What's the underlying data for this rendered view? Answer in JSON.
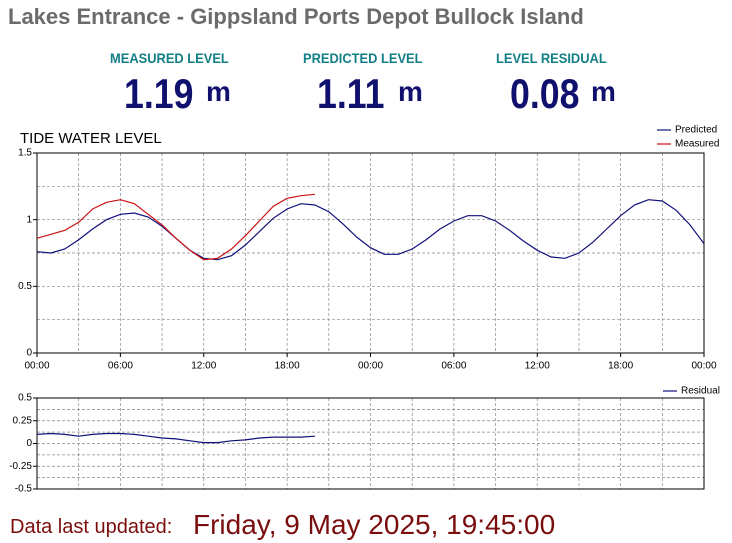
{
  "header": {
    "title": "Lakes Entrance - Gippsland Ports Depot Bullock Island"
  },
  "metrics": [
    {
      "label": "MEASURED LEVEL",
      "value": 1.19,
      "unit": "m"
    },
    {
      "label": "PREDICTED LEVEL",
      "value": 1.11,
      "unit": "m"
    },
    {
      "label": "LEVEL RESIDUAL",
      "value": 0.08,
      "unit": "m"
    }
  ],
  "chart_data": [
    {
      "type": "line",
      "title": "TIDE WATER LEVEL",
      "x": [
        0,
        1,
        2,
        3,
        4,
        5,
        6,
        7,
        8,
        9,
        10,
        11,
        12,
        13,
        14,
        15,
        16,
        17,
        18,
        19,
        20,
        21,
        22,
        23,
        24,
        25,
        26,
        27,
        28,
        29,
        30,
        31,
        32,
        33,
        34,
        35,
        36,
        37,
        38,
        39,
        40,
        41,
        42,
        43,
        44,
        45,
        46,
        47,
        48
      ],
      "series": [
        {
          "name": "Predicted",
          "color": "#10107a",
          "values": [
            0.76,
            0.75,
            0.78,
            0.85,
            0.93,
            1.0,
            1.04,
            1.05,
            1.02,
            0.95,
            0.86,
            0.77,
            0.71,
            0.7,
            0.73,
            0.81,
            0.91,
            1.01,
            1.08,
            1.12,
            1.11,
            1.06,
            0.97,
            0.87,
            0.79,
            0.74,
            0.74,
            0.78,
            0.85,
            0.93,
            0.99,
            1.03,
            1.03,
            0.99,
            0.92,
            0.84,
            0.77,
            0.72,
            0.71,
            0.75,
            0.83,
            0.93,
            1.03,
            1.11,
            1.15,
            1.14,
            1.07,
            0.96,
            0.82
          ]
        },
        {
          "name": "Measured",
          "color": "#cc1111",
          "values": [
            0.86,
            0.89,
            0.92,
            0.98,
            1.08,
            1.13,
            1.15,
            1.12,
            1.04,
            0.96,
            0.86,
            0.77,
            0.7,
            0.71,
            0.78,
            0.88,
            0.99,
            1.1,
            1.16,
            1.18,
            1.19,
            null,
            null,
            null,
            null,
            null,
            null,
            null,
            null,
            null,
            null,
            null,
            null,
            null,
            null,
            null,
            null,
            null,
            null,
            null,
            null,
            null,
            null,
            null,
            null,
            null,
            null,
            null,
            null
          ]
        }
      ],
      "xlim": [
        0,
        48
      ],
      "xticks": [
        {
          "value": 0,
          "label": "00:00"
        },
        {
          "value": 6,
          "label": "06:00"
        },
        {
          "value": 12,
          "label": "12:00"
        },
        {
          "value": 18,
          "label": "18:00"
        },
        {
          "value": 24,
          "label": "00:00"
        },
        {
          "value": 30,
          "label": "06:00"
        },
        {
          "value": 36,
          "label": "12:00"
        },
        {
          "value": 42,
          "label": "18:00"
        },
        {
          "value": 48,
          "label": "00:00"
        }
      ],
      "ylim": [
        0,
        1.5
      ],
      "yticks": [
        0,
        0.5,
        1,
        1.5
      ],
      "grid": true
    },
    {
      "type": "line",
      "x": [
        0,
        1,
        2,
        3,
        4,
        5,
        6,
        7,
        8,
        9,
        10,
        11,
        12,
        13,
        14,
        15,
        16,
        17,
        18,
        19,
        20
      ],
      "series": [
        {
          "name": "Residual",
          "color": "#10107a",
          "values": [
            0.1,
            0.11,
            0.1,
            0.08,
            0.1,
            0.11,
            0.11,
            0.1,
            0.08,
            0.06,
            0.05,
            0.03,
            0.01,
            0.01,
            0.03,
            0.04,
            0.06,
            0.07,
            0.07,
            0.07,
            0.08
          ]
        }
      ],
      "xlim": [
        0,
        48
      ],
      "ylim": [
        -0.5,
        0.5
      ],
      "yticks": [
        0.5,
        0.25,
        0,
        -0.25,
        -0.5
      ],
      "grid": true
    }
  ],
  "footer": {
    "label": "Data last updated:",
    "value": "Friday, 9 May 2025, 19:45:00"
  }
}
